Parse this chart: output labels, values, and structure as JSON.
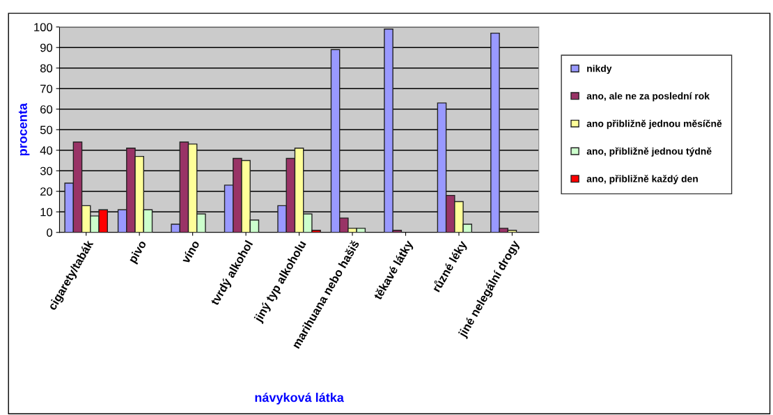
{
  "chart_data": {
    "type": "bar",
    "xlabel": "návyková látka",
    "ylabel": "procenta",
    "categories": [
      "cigarety/tabák",
      "pivo",
      "víno",
      "tvrdý alkohol",
      "jiný typ alkoholu",
      "marihuana nebo hašiš",
      "těkavé látky",
      "různé léky",
      "jiné nelegální drogy"
    ],
    "series": [
      {
        "name": "nikdy",
        "color": "#9999ff",
        "values": [
          24,
          11,
          4,
          23,
          13,
          89,
          99,
          63,
          97
        ]
      },
      {
        "name": "ano, ale ne za poslední rok",
        "color": "#993366",
        "values": [
          44,
          41,
          44,
          36,
          36,
          7,
          1,
          18,
          2
        ]
      },
      {
        "name": "ano přibližně jednou měsíčně",
        "color": "#ffff99",
        "values": [
          13,
          37,
          43,
          35,
          41,
          2,
          null,
          15,
          1
        ]
      },
      {
        "name": "ano, přibližně jednou týdně",
        "color": "#ccffcc",
        "values": [
          8,
          11,
          9,
          6,
          9,
          2,
          null,
          4,
          null
        ]
      },
      {
        "name": "ano, přibližně každý den",
        "color": "#ff0000",
        "values": [
          11,
          null,
          null,
          null,
          1,
          null,
          null,
          null,
          null
        ]
      }
    ],
    "ylim": [
      0,
      100
    ],
    "yticks": [
      0,
      10,
      20,
      30,
      40,
      50,
      60,
      70,
      80,
      90,
      100
    ],
    "grid": "y",
    "legend": "right"
  }
}
